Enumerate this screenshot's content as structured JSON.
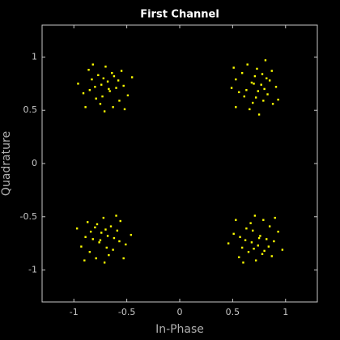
{
  "chart_data": {
    "type": "scatter",
    "title": "First Channel",
    "xlabel": "In-Phase",
    "ylabel": "Quadrature",
    "xlim": [
      -1.3,
      1.3
    ],
    "ylim": [
      -1.3,
      1.3
    ],
    "xticks": [
      -1,
      -0.5,
      0,
      0.5,
      1
    ],
    "yticks": [
      -1,
      -0.5,
      0,
      0.5,
      1
    ],
    "series": [
      {
        "color": "#ffff00",
        "x": [
          -0.66,
          -0.83,
          -0.53,
          -0.75,
          -0.62,
          -0.91,
          -0.7,
          -0.57,
          -0.8,
          -0.68,
          -0.86,
          -0.49,
          -0.73,
          -0.64,
          -0.89,
          -0.6,
          -0.77,
          -0.71,
          -0.55,
          -0.96,
          -0.67,
          -0.79,
          -0.58,
          -0.82,
          -0.45,
          -0.74,
          -0.63,
          -0.85,
          -0.52,
          -0.72,
          0.68,
          0.79,
          0.73,
          0.56,
          0.82,
          0.66,
          0.91,
          0.59,
          0.72,
          0.77,
          0.88,
          0.64,
          0.63,
          0.85,
          0.53,
          0.71,
          0.83,
          0.49,
          0.87,
          0.75,
          0.7,
          0.61,
          0.78,
          0.93,
          0.81,
          0.74,
          0.53,
          0.69,
          0.51,
          0.8,
          -0.76,
          -0.59,
          -0.89,
          -0.67,
          -0.8,
          -0.51,
          -0.72,
          -0.85,
          -0.62,
          -0.74,
          -0.56,
          -0.93,
          -0.69,
          -0.78,
          -0.53,
          -0.82,
          -0.65,
          -0.71,
          -0.87,
          -0.46,
          -0.75,
          -0.63,
          -0.84,
          -0.6,
          -0.97,
          -0.68,
          -0.79,
          -0.57,
          -0.9,
          -0.7,
          0.76,
          0.59,
          0.89,
          0.67,
          0.8,
          0.51,
          0.72,
          0.85,
          0.62,
          0.74,
          0.56,
          0.93,
          0.69,
          0.78,
          0.53,
          0.82,
          0.65,
          0.71,
          0.87,
          0.46,
          0.75,
          0.63,
          0.84,
          0.6,
          0.97,
          0.68,
          0.79,
          0.57,
          0.9,
          0.7
        ],
        "values": [
          0.68,
          0.79,
          0.73,
          0.56,
          0.82,
          0.66,
          0.91,
          0.59,
          0.72,
          0.77,
          0.88,
          0.64,
          0.63,
          0.85,
          0.53,
          0.71,
          0.83,
          0.49,
          0.87,
          0.75,
          0.7,
          0.61,
          0.78,
          0.93,
          0.81,
          0.74,
          0.53,
          0.69,
          0.51,
          0.8,
          0.76,
          0.59,
          0.89,
          0.67,
          0.8,
          0.51,
          0.72,
          0.85,
          0.62,
          0.74,
          0.56,
          0.93,
          0.69,
          0.78,
          0.53,
          0.82,
          0.65,
          0.71,
          0.87,
          0.46,
          0.75,
          0.63,
          0.84,
          0.6,
          0.97,
          0.68,
          0.79,
          0.57,
          0.9,
          0.7,
          -0.74,
          -0.63,
          -0.69,
          -0.86,
          -0.6,
          -0.76,
          -0.51,
          -0.83,
          -0.7,
          -0.65,
          -0.54,
          -0.78,
          -0.79,
          -0.57,
          -0.89,
          -0.71,
          -0.59,
          -0.93,
          -0.55,
          -0.67,
          -0.72,
          -0.81,
          -0.64,
          -0.49,
          -0.61,
          -0.68,
          -0.89,
          -0.73,
          -0.91,
          -0.62,
          -0.68,
          -0.79,
          -0.73,
          -0.56,
          -0.82,
          -0.66,
          -0.91,
          -0.59,
          -0.72,
          -0.77,
          -0.88,
          -0.64,
          -0.63,
          -0.85,
          -0.53,
          -0.71,
          -0.83,
          -0.49,
          -0.87,
          -0.75,
          -0.7,
          -0.61,
          -0.78,
          -0.93,
          -0.81,
          -0.74,
          -0.53,
          -0.69,
          -0.51,
          -0.8
        ]
      }
    ]
  }
}
